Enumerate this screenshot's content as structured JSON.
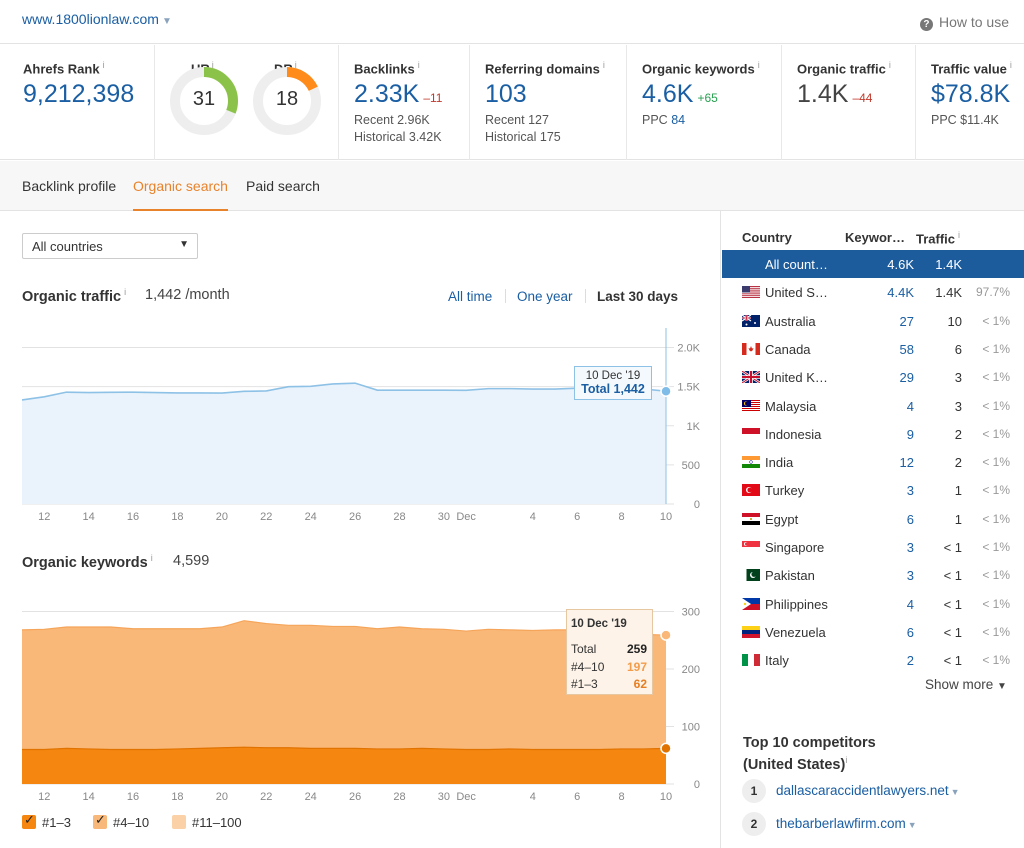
{
  "header": {
    "domain": "www.1800lionlaw.com",
    "how_to_use": "How to use"
  },
  "metrics": {
    "ahrefs_rank": {
      "label": "Ahrefs Rank",
      "value": "9,212,398"
    },
    "ur": {
      "label": "UR",
      "value": "31",
      "fill_fraction": 0.31,
      "color": "#8bc34a"
    },
    "dr": {
      "label": "DR",
      "value": "18",
      "fill_fraction": 0.18,
      "color": "#ff8c1a"
    },
    "backlinks": {
      "label": "Backlinks",
      "value": "2.33K",
      "delta": "–11",
      "recent": "Recent 2.96K",
      "historical": "Historical 3.42K"
    },
    "referring_domains": {
      "label": "Referring domains",
      "value": "103",
      "recent": "Recent 127",
      "historical": "Historical 175"
    },
    "organic_keywords": {
      "label": "Organic keywords",
      "value": "4.6K",
      "delta": "+65",
      "ppc_label": "PPC",
      "ppc_value": "84"
    },
    "organic_traffic": {
      "label": "Organic traffic",
      "value": "1.4K",
      "delta": "–44"
    },
    "traffic_value": {
      "label": "Traffic value",
      "value": "$78.8K",
      "ppc": "PPC $11.4K"
    }
  },
  "tabs": [
    "Backlink profile",
    "Organic search",
    "Paid search"
  ],
  "country_select": "All countries",
  "organic_traffic_section": {
    "title": "Organic traffic",
    "value": "1,442 /month",
    "ranges": [
      "All time",
      "One year",
      "Last 30 days"
    ],
    "tooltip_date": "10 Dec '19",
    "tooltip_value": "Total 1,442"
  },
  "organic_keywords_section": {
    "title": "Organic keywords",
    "value": "4,599",
    "tooltip": {
      "date": "10 Dec '19",
      "rows": [
        {
          "label": "Total",
          "value": "259"
        },
        {
          "label": "#4–10",
          "value": "197"
        },
        {
          "label": "#1–3",
          "value": "62"
        }
      ]
    },
    "legend": [
      "#1–3",
      "#4–10",
      "#11–100"
    ]
  },
  "chart_data": [
    {
      "type": "area",
      "title": "Organic traffic",
      "x": [
        "11 Nov",
        "12",
        "13",
        "14",
        "15",
        "16",
        "17",
        "18",
        "19",
        "20",
        "21",
        "22",
        "23",
        "24",
        "25",
        "26",
        "27",
        "28",
        "29",
        "30",
        "Dec",
        "2",
        "3",
        "4",
        "5",
        "6",
        "7",
        "8",
        "9",
        "10"
      ],
      "x_tick_labels": [
        "12",
        "14",
        "16",
        "18",
        "20",
        "22",
        "24",
        "26",
        "28",
        "30",
        "Dec",
        "4",
        "6",
        "8",
        "10"
      ],
      "series": [
        {
          "name": "Total",
          "values": [
            1330,
            1370,
            1430,
            1425,
            1428,
            1430,
            1425,
            1420,
            1420,
            1418,
            1440,
            1445,
            1500,
            1505,
            1535,
            1545,
            1455,
            1455,
            1455,
            1455,
            1453,
            1475,
            1475,
            1470,
            1470,
            1480,
            1470,
            1470,
            1470,
            1442
          ]
        }
      ],
      "y_ticks": [
        "2.0K",
        "1.5K",
        "1K",
        "500",
        "0"
      ],
      "ylim": [
        0,
        2000
      ],
      "color": "#8ec1e6"
    },
    {
      "type": "area",
      "title": "Organic keywords",
      "x": [
        "11 Nov",
        "12",
        "13",
        "14",
        "15",
        "16",
        "17",
        "18",
        "19",
        "20",
        "21",
        "22",
        "23",
        "24",
        "25",
        "26",
        "27",
        "28",
        "29",
        "30",
        "Dec",
        "2",
        "3",
        "4",
        "5",
        "6",
        "7",
        "8",
        "9",
        "10"
      ],
      "x_tick_labels": [
        "12",
        "14",
        "16",
        "18",
        "20",
        "22",
        "24",
        "26",
        "28",
        "30",
        "Dec",
        "4",
        "6",
        "8",
        "10"
      ],
      "series": [
        {
          "name": "#1–3",
          "values": [
            60,
            60,
            62,
            61,
            60,
            60,
            60,
            61,
            62,
            63,
            64,
            63,
            63,
            62,
            62,
            62,
            61,
            61,
            62,
            61,
            60,
            60,
            61,
            60,
            60,
            60,
            60,
            61,
            61,
            62
          ]
        },
        {
          "name": "#4–10",
          "values": [
            208,
            209,
            211,
            212,
            213,
            210,
            210,
            209,
            208,
            210,
            220,
            216,
            213,
            214,
            212,
            212,
            209,
            212,
            208,
            208,
            206,
            209,
            207,
            207,
            208,
            208,
            208,
            205,
            199,
            197
          ]
        },
        {
          "name": "#11–100"
        }
      ],
      "totals": [
        268,
        269,
        273,
        273,
        273,
        270,
        270,
        270,
        270,
        273,
        284,
        279,
        276,
        276,
        274,
        274,
        270,
        273,
        270,
        269,
        266,
        269,
        268,
        267,
        268,
        268,
        268,
        266,
        260,
        259
      ],
      "y_ticks": [
        "300",
        "200",
        "100",
        "0"
      ],
      "ylim": [
        0,
        320
      ],
      "colors": {
        "#1–3": "#f5860f",
        "#4–10": "#f8b87a",
        "#11–100": "#fbd2a8"
      }
    }
  ],
  "countries_table": {
    "headers": {
      "country": "Country",
      "keywords": "Keywor…",
      "traffic": "Traffic"
    },
    "rows": [
      {
        "name": "All count…",
        "kw": "4.6K",
        "traffic": "1.4K",
        "pct": "",
        "selected": true,
        "flag": "none"
      },
      {
        "name": "United S…",
        "kw": "4.4K",
        "traffic": "1.4K",
        "pct": "97.7%",
        "flag": "us"
      },
      {
        "name": "Australia",
        "kw": "27",
        "traffic": "10",
        "pct": "< 1%",
        "flag": "au"
      },
      {
        "name": "Canada",
        "kw": "58",
        "traffic": "6",
        "pct": "< 1%",
        "flag": "ca"
      },
      {
        "name": "United K…",
        "kw": "29",
        "traffic": "3",
        "pct": "< 1%",
        "flag": "gb"
      },
      {
        "name": "Malaysia",
        "kw": "4",
        "traffic": "3",
        "pct": "< 1%",
        "flag": "my"
      },
      {
        "name": "Indonesia",
        "kw": "9",
        "traffic": "2",
        "pct": "< 1%",
        "flag": "id"
      },
      {
        "name": "India",
        "kw": "12",
        "traffic": "2",
        "pct": "< 1%",
        "flag": "in"
      },
      {
        "name": "Turkey",
        "kw": "3",
        "traffic": "1",
        "pct": "< 1%",
        "flag": "tr"
      },
      {
        "name": "Egypt",
        "kw": "6",
        "traffic": "1",
        "pct": "< 1%",
        "flag": "eg"
      },
      {
        "name": "Singapore",
        "kw": "3",
        "traffic": "< 1",
        "pct": "< 1%",
        "flag": "sg"
      },
      {
        "name": "Pakistan",
        "kw": "3",
        "traffic": "< 1",
        "pct": "< 1%",
        "flag": "pk"
      },
      {
        "name": "Philippines",
        "kw": "4",
        "traffic": "< 1",
        "pct": "< 1%",
        "flag": "ph"
      },
      {
        "name": "Venezuela",
        "kw": "6",
        "traffic": "< 1",
        "pct": "< 1%",
        "flag": "ve"
      },
      {
        "name": "Italy",
        "kw": "2",
        "traffic": "< 1",
        "pct": "< 1%",
        "flag": "it"
      }
    ],
    "show_more": "Show more"
  },
  "competitors": {
    "title_line1": "Top 10 competitors",
    "title_line2": "(United States)",
    "items": [
      {
        "rank": "1",
        "domain": "dallascaraccidentlawyers.net"
      },
      {
        "rank": "2",
        "domain": "thebarberlawfirm.com"
      }
    ]
  }
}
